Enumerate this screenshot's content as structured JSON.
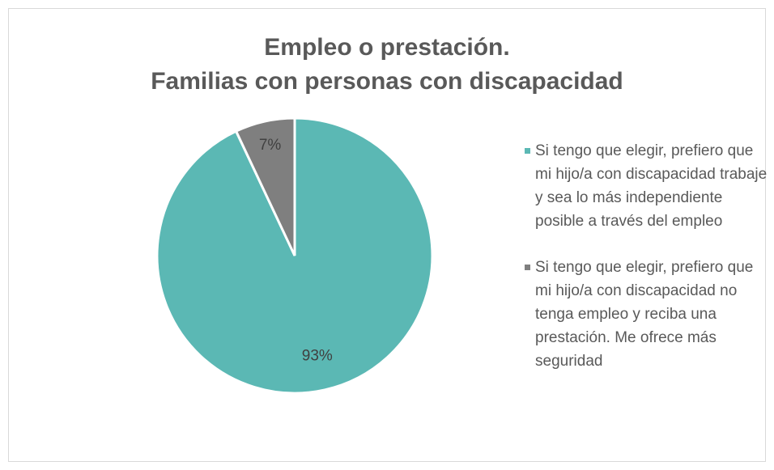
{
  "chart_data": {
    "type": "pie",
    "title": [
      "Empleo o prestación.",
      "Familias con personas con discapacidad"
    ],
    "categories": [
      "Si tengo que elegir, prefiero que mi hijo/a con discapacidad trabaje y sea lo más independiente posible a través del empleo",
      "Si tengo que elegir, prefiero que mi hijo/a con discapacidad no tenga empleo y reciba una prestación. Me ofrece más seguridad"
    ],
    "values": [
      93,
      7
    ],
    "value_labels": [
      "93%",
      "7%"
    ],
    "colors": [
      "#5bb8b4",
      "#7f7f7f"
    ],
    "legend": "right"
  }
}
